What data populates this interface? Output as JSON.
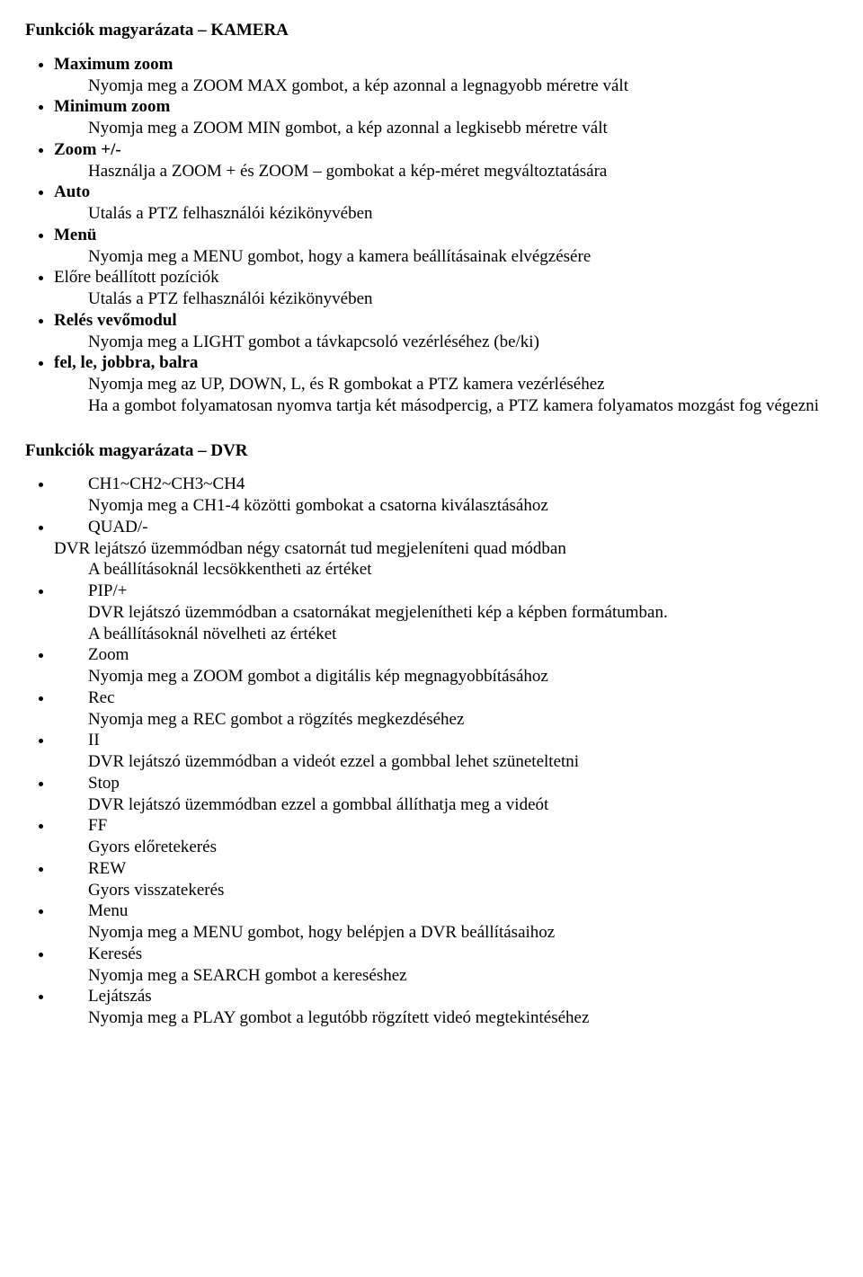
{
  "kamera": {
    "title": "Funkciók magyarázata – KAMERA",
    "items": [
      {
        "label": "Maximum zoom",
        "desc1": "Nyomja meg a ZOOM MAX gombot, a kép azonnal a legnagyobb méretre vált"
      },
      {
        "label": "Minimum zoom",
        "desc1": "Nyomja meg a ZOOM MIN gombot, a kép azonnal a legkisebb méretre vált"
      },
      {
        "label": "Zoom +/-",
        "desc1": "Használja a ZOOM + és ZOOM – gombokat a kép-méret megváltoztatására"
      },
      {
        "label": "Auto",
        "desc1": "Utalás a PTZ felhasználói kézikönyvében"
      },
      {
        "label": "Menü",
        "desc1": "Nyomja meg a MENU gombot, hogy a kamera beállításainak elvégzésére"
      },
      {
        "label": "Előre beállított pozíciók",
        "desc1": "Utalás a PTZ felhasználói kézikönyvében"
      },
      {
        "label": "Relés vevőmodul",
        "desc1": "Nyomja meg a LIGHT gombot a távkapcsoló vezérléséhez (be/ki)"
      },
      {
        "label": "fel, le, jobbra, balra",
        "desc1": "Nyomja meg az UP, DOWN, L, és R gombokat a PTZ kamera vezérléséhez",
        "desc2": "Ha a gombot folyamatosan nyomva tartja két másodpercig, a PTZ kamera folyamatos mozgást fog végezni"
      }
    ]
  },
  "dvr": {
    "title": "Funkciók magyarázata – DVR",
    "items": [
      {
        "label": "CH1~CH2~CH3~CH4",
        "lines": [
          "Nyomja meg a CH1-4 közötti gombokat a csatorna kiválasztásához"
        ]
      },
      {
        "label": "QUAD/-",
        "lines": [
          "DVR lejátszó üzemmódban négy csatornát tud megjeleníteni quad módban",
          "A beállításoknál lecsökkentheti az értéket"
        ],
        "outdent_first": true
      },
      {
        "label": "PIP/+",
        "lines": [
          "DVR lejátszó üzemmódban a csatornákat megjelenítheti kép a képben formátumban.",
          "A beállításoknál növelheti az értéket"
        ]
      },
      {
        "label": "Zoom",
        "lines": [
          "Nyomja meg a ZOOM gombot a digitális kép megnagyobbításához"
        ]
      },
      {
        "label": "Rec",
        "lines": [
          "Nyomja meg a REC gombot a rögzítés megkezdéséhez"
        ]
      },
      {
        "label": "II",
        "lines": [
          "DVR lejátszó üzemmódban a videót ezzel a gombbal lehet szüneteltetni"
        ]
      },
      {
        "label": "Stop",
        "lines": [
          "DVR lejátszó üzemmódban ezzel a gombbal állíthatja meg a videót"
        ]
      },
      {
        "label": "FF",
        "lines": [
          "Gyors előretekerés"
        ]
      },
      {
        "label": "REW",
        "lines": [
          "Gyors visszatekerés"
        ]
      },
      {
        "label": "Menu",
        "lines": [
          "Nyomja meg a MENU gombot, hogy belépjen a DVR beállításaihoz"
        ]
      },
      {
        "label": "Keresés",
        "lines": [
          "Nyomja meg a SEARCH gombot a kereséshez"
        ]
      },
      {
        "label": "Lejátszás",
        "lines": [
          "Nyomja meg a PLAY gombot a legutóbb rögzített videó megtekintéséhez"
        ]
      }
    ]
  }
}
